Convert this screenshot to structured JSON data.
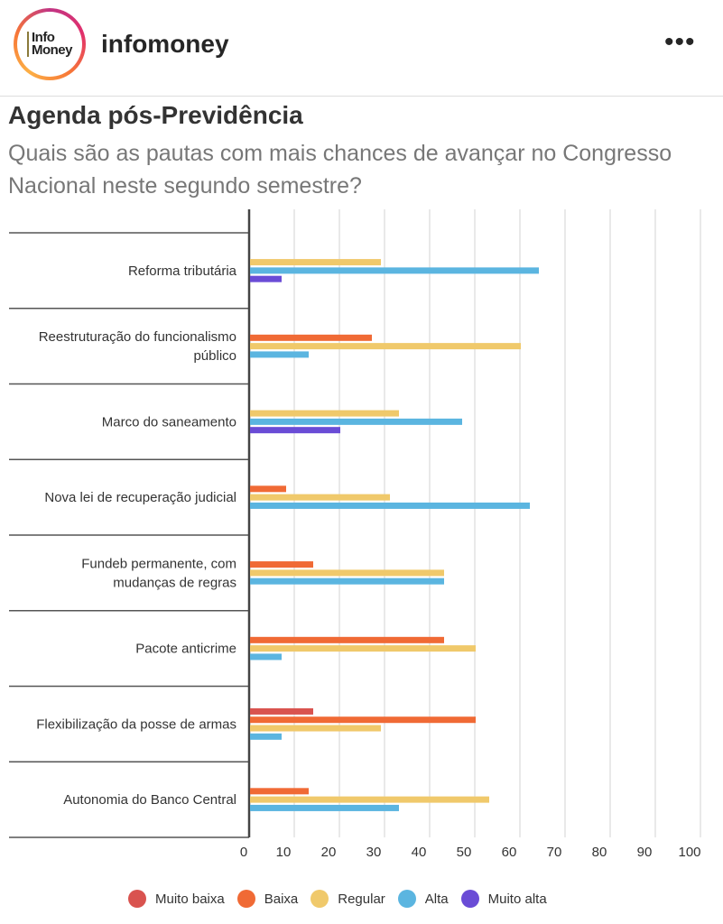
{
  "header": {
    "logo_text": "Info Money",
    "username": "infomoney",
    "more_icon": "more-horizontal-icon"
  },
  "title": "Agenda pós-Previdência",
  "subtitle": "Quais são as pautas com mais chances de avançar no Congresso Nacional neste segundo semestre?",
  "chart_data": {
    "type": "bar",
    "orientation": "horizontal",
    "categories": [
      "Reforma tributária",
      "Reestruturação do funcionalismo público",
      "Marco do saneamento",
      "Nova lei de recuperação judicial",
      "Fundeb permanente, com mudanças de regras",
      "Pacote anticrime",
      "Flexibilização da posse de armas",
      "Autonomia do Banco Central"
    ],
    "category_lines": [
      [
        "Reforma tributária"
      ],
      [
        "Reestruturação do funcionalismo",
        "público"
      ],
      [
        "Marco do saneamento"
      ],
      [
        "Nova lei de recuperação judicial"
      ],
      [
        "Fundeb permanente, com",
        "mudanças de regras"
      ],
      [
        "Pacote anticrime"
      ],
      [
        "Flexibilização da posse de armas"
      ],
      [
        "Autonomia do Banco Central"
      ]
    ],
    "series": [
      {
        "name": "Muito baixa",
        "color": "#d9534f",
        "values": [
          0,
          0,
          0,
          0,
          0,
          0,
          14,
          0
        ]
      },
      {
        "name": "Baixa",
        "color": "#f06a35",
        "values": [
          0,
          27,
          0,
          8,
          14,
          43,
          50,
          13
        ]
      },
      {
        "name": "Regular",
        "color": "#f0c96b",
        "values": [
          29,
          60,
          33,
          31,
          43,
          50,
          29,
          53
        ]
      },
      {
        "name": "Alta",
        "color": "#5bb5e0",
        "values": [
          64,
          13,
          47,
          62,
          43,
          7,
          7,
          33
        ]
      },
      {
        "name": "Muito alta",
        "color": "#6a4cd6",
        "values": [
          7,
          0,
          20,
          0,
          0,
          0,
          0,
          0
        ]
      }
    ],
    "xlim": [
      0,
      100
    ],
    "xticks": [
      "0",
      "10",
      "20",
      "30",
      "40",
      "50",
      "60",
      "70",
      "80",
      "90",
      "100"
    ],
    "grid": true,
    "legend": "bottom"
  }
}
